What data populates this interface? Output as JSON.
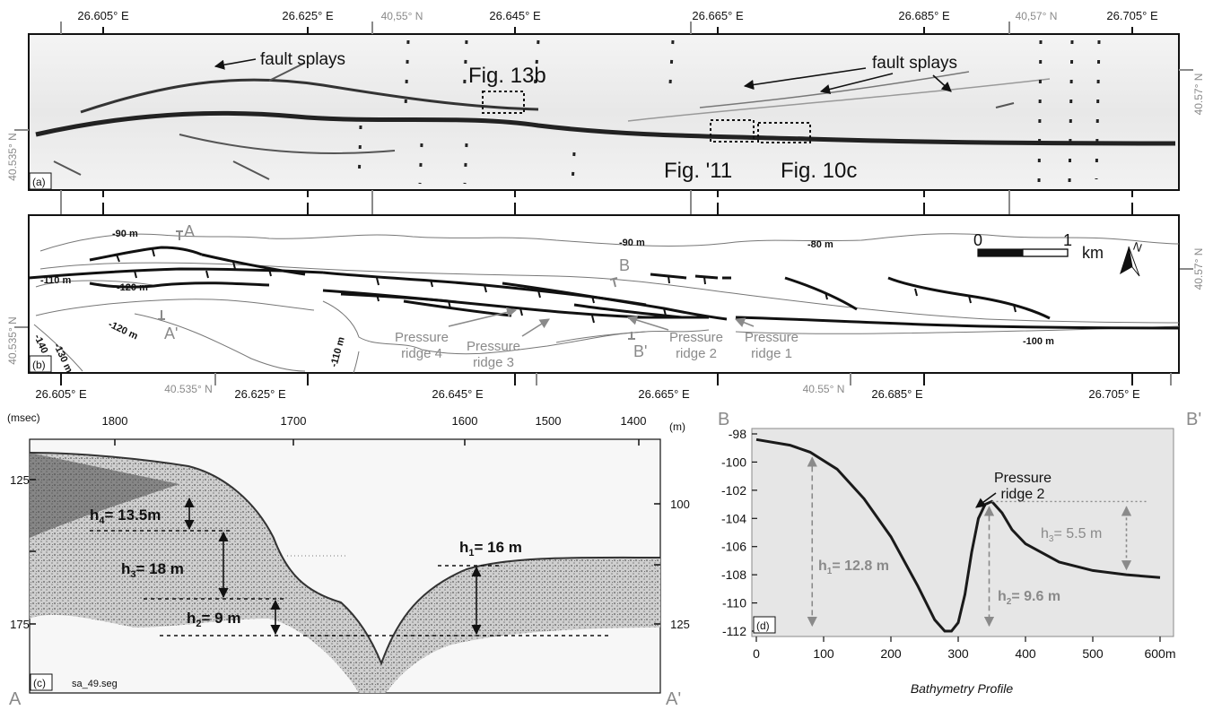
{
  "figure": {
    "top_lon_labels": [
      "26.605° E",
      "26.625° E",
      "26.645° E",
      "26.665° E",
      "26.685° E",
      "26.705° E"
    ],
    "top_lat_labels": [
      "40,55° N",
      "40,57° N"
    ],
    "right_lat_labels": [
      "40.57° N",
      "40.57° N"
    ],
    "left_lat_labels": [
      "40.535° N",
      "40.535° N"
    ],
    "bottom_lon_labels": [
      "26.605° E",
      "26.625° E",
      "26.645° E",
      "26.665° E",
      "26.685° E",
      "26.705° E"
    ],
    "bottom_lat_labels": [
      "40.535° N",
      "40.55° N"
    ]
  },
  "panel_a": {
    "tag": "(a)",
    "labels": {
      "fault_splays_left": "fault splays",
      "fault_splays_right": "fault splays",
      "fig13b": "Fig. 13b",
      "fig11": "Fig. '11",
      "fig10c": "Fig. 10c"
    }
  },
  "panel_b": {
    "tag": "(b)",
    "contours": [
      "-90 m",
      "-90 m",
      "-80 m",
      "-110 m",
      "-120 m",
      "-120 m",
      "-140 m",
      "-130 m",
      "-110 m",
      "-100 m"
    ],
    "profile_ends": {
      "A": "A",
      "A_prime": "A'",
      "B": "B",
      "B_prime": "B'"
    },
    "ridges": [
      "Pressure ridge 4",
      "Pressure ridge 3",
      "Pressure ridge 2",
      "Pressure ridge 1"
    ],
    "scale": {
      "zero": "0",
      "one": "1",
      "unit": "km"
    },
    "north": "N"
  },
  "panel_c": {
    "tag": "(c)",
    "left_unit": "(msec)",
    "right_unit": "(m)",
    "top_ticks": [
      "1800",
      "1700",
      "1600",
      "1500",
      "1400"
    ],
    "left_ticks": [
      "125",
      "175"
    ],
    "right_ticks": [
      "100",
      "125"
    ],
    "filename": "sa_49.seg",
    "end_left": "A",
    "end_right": "A'",
    "annotations": {
      "h4_a": "h",
      "h4_sub": "4",
      "h4_b": "= 13.5m",
      "h3_a": "h",
      "h3_sub": "3",
      "h3_b": "= 18 m",
      "h2_a": "h",
      "h2_sub": "2",
      "h2_b": "= 9 m",
      "h1_a": "h",
      "h1_sub": "1",
      "h1_b": "= 16 m"
    }
  },
  "panel_d": {
    "tag": "(d)",
    "end_left": "B",
    "end_right": "B'",
    "ridge_label_line1": "Pressure",
    "ridge_label_line2": "ridge 2",
    "xlabel": "Bathymetry Profile",
    "x_ticks": [
      "0",
      "100",
      "200",
      "300",
      "400",
      "500",
      "600m"
    ],
    "y_ticks": [
      "-98",
      "-100",
      "-102",
      "-104",
      "-106",
      "-108",
      "-110",
      "-112"
    ],
    "annotations": {
      "h1_a": "h",
      "h1_sub": "1",
      "h1_b": "= 12.8 m",
      "h2_a": "h",
      "h2_sub": "2",
      "h2_b": "= 9.6 m",
      "h3_a": "h",
      "h3_sub": "3",
      "h3_b": "= 5.5 m"
    }
  },
  "chart_data": {
    "type": "line",
    "title": "",
    "xlabel": "Bathymetry Profile",
    "ylabel": "",
    "xlim": [
      0,
      600
    ],
    "ylim": [
      -112,
      -98
    ],
    "x": [
      0,
      50,
      80,
      120,
      160,
      200,
      240,
      265,
      280,
      290,
      300,
      310,
      320,
      330,
      340,
      350,
      365,
      380,
      400,
      450,
      500,
      550,
      600
    ],
    "y": [
      -98.4,
      -98.8,
      -99.3,
      -100.5,
      -102.6,
      -105.3,
      -108.8,
      -111.2,
      -112.0,
      -112.0,
      -111.4,
      -109.4,
      -106.4,
      -104.0,
      -103.0,
      -102.8,
      -103.6,
      -104.8,
      -105.8,
      -107.1,
      -107.7,
      -108.0,
      -108.2
    ],
    "annotations": [
      "h1= 12.8 m",
      "h2= 9.6 m",
      "h3= 5.5 m",
      "Pressure ridge 2"
    ],
    "grid": false,
    "background": "#e6e6e6",
    "line_color": "#1a1a1a",
    "annotation_color": "#8a8a8a"
  }
}
